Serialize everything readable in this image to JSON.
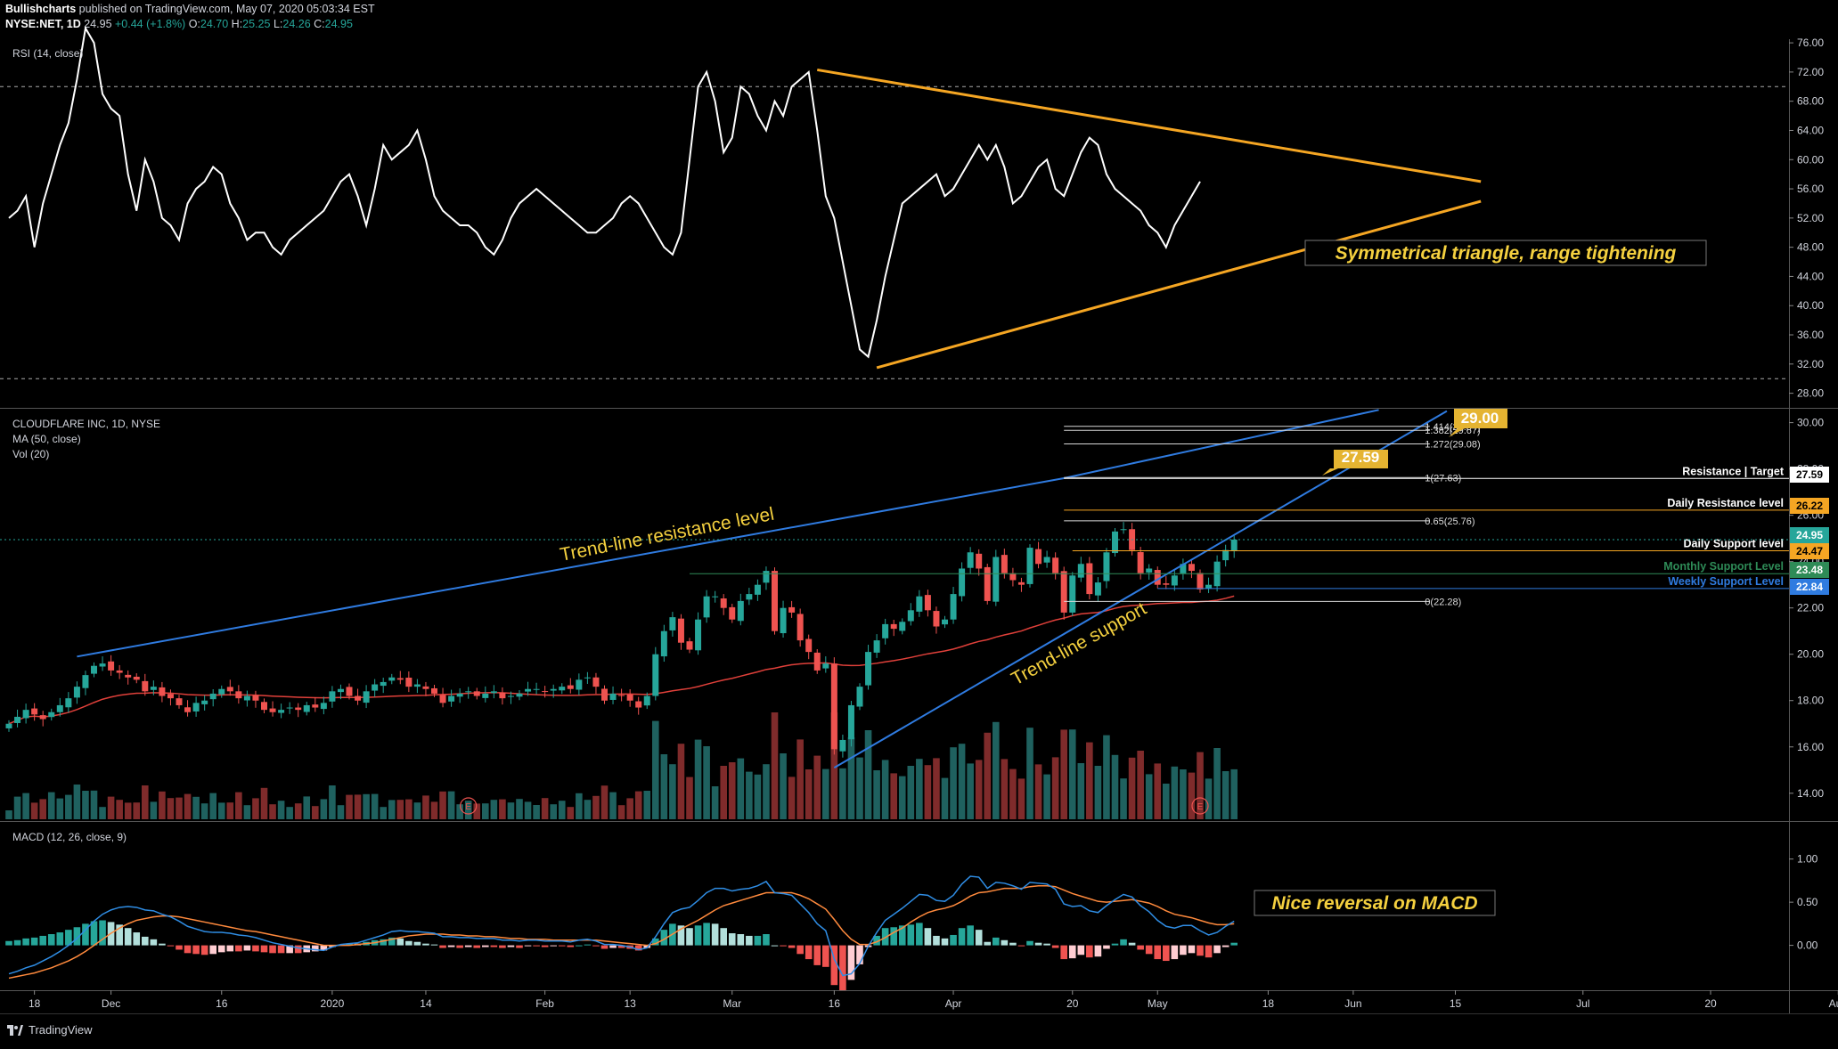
{
  "header": {
    "line1": {
      "author": "Bullishcharts",
      "text": "published on TradingView.com, May 07, 2020 05:03:34 EST"
    },
    "line2": {
      "symbol": "NYSE:NET, 1D",
      "last": "24.95",
      "change": "+0.44 (+1.8%)",
      "o_label": "O:",
      "o": "24.70",
      "h_label": "H:",
      "h": "25.25",
      "l_label": "L:",
      "l": "24.26",
      "c_label": "C:",
      "c": "24.95"
    }
  },
  "footer": {
    "brand": "TradingView",
    "logo_icon": "tradingview-logo-icon"
  },
  "colors": {
    "up": "#26a69a",
    "down": "#ef5350",
    "vol_up": "#1f615f",
    "vol_down": "#7f2b2b",
    "ma": "#e0403a",
    "rsi": "#ffffff",
    "triangle": "#f5a623",
    "trendline": "#2f7be0",
    "annotation": "#f4d03f",
    "macd": "#2f8de4",
    "signal": "#ff8a3d",
    "hist_up_strong": "#26a69a",
    "hist_up_weak": "#b2dfdb",
    "hist_down_strong": "#ef5350",
    "hist_down_weak": "#ffcdd2"
  },
  "chart_data": [
    {
      "type": "line",
      "title": "RSI (14, close)",
      "ylim": [
        26,
        76.5
      ],
      "yticks": [
        "76.00",
        "72.00",
        "68.00",
        "64.00",
        "60.00",
        "56.00",
        "52.00",
        "48.00",
        "44.00",
        "40.00",
        "36.00",
        "32.00",
        "28.00"
      ],
      "levels": [
        70,
        30
      ],
      "series": [
        {
          "name": "RSI",
          "values": [
            52,
            53,
            55,
            48,
            54,
            58,
            62,
            65,
            71,
            78,
            76,
            69,
            67,
            66,
            58,
            53,
            60,
            57,
            52,
            51,
            49,
            54,
            56,
            57,
            59,
            58,
            54,
            52,
            49,
            50,
            50,
            48,
            47,
            49,
            50,
            51,
            52,
            53,
            55,
            57,
            58,
            55,
            51,
            56,
            62,
            60,
            61,
            62,
            64,
            60,
            55,
            53,
            52,
            51,
            51,
            50,
            48,
            47,
            49,
            52,
            54,
            55,
            56,
            55,
            54,
            53,
            52,
            51,
            50,
            50,
            51,
            52,
            54,
            55,
            54,
            52,
            50,
            48,
            47,
            50,
            60,
            70,
            72,
            68,
            61,
            63,
            70,
            69,
            66,
            64,
            68,
            66,
            70,
            71,
            72,
            64,
            55,
            52,
            46,
            40,
            34,
            33,
            38,
            44,
            49,
            54,
            55,
            56,
            57,
            58,
            55,
            56,
            58,
            60,
            62,
            60,
            62,
            59,
            54,
            55,
            57,
            59,
            60,
            56,
            55,
            58,
            61,
            63,
            62,
            58,
            56,
            55,
            54,
            53,
            51,
            50,
            48,
            51,
            53,
            55,
            57
          ]
        }
      ],
      "annotations": {
        "label": "Symmetrical triangle, range tightening",
        "upper_trendline": [
          [
            95,
            72.3
          ],
          [
            173,
            57
          ]
        ],
        "lower_trendline": [
          [
            102,
            31.5
          ],
          [
            173,
            54.3
          ]
        ]
      }
    },
    {
      "type": "candlestick",
      "title": "CLOUDFLARE INC, 1D, NYSE",
      "indicators": [
        "MA (50, close)",
        "Vol (20)"
      ],
      "ylim": [
        12.8,
        30.6
      ],
      "yticks": [
        "30.00",
        "28.00",
        "26.00",
        "24.00",
        "22.00",
        "20.00",
        "18.00",
        "16.00",
        "14.00"
      ],
      "x_ticks": [
        {
          "i": 3,
          "label": "18"
        },
        {
          "i": 12,
          "label": "Dec"
        },
        {
          "i": 25,
          "label": "16"
        },
        {
          "i": 38,
          "label": "2020"
        },
        {
          "i": 49,
          "label": "14"
        },
        {
          "i": 63,
          "label": "Feb"
        },
        {
          "i": 73,
          "label": "13"
        },
        {
          "i": 85,
          "label": "Mar"
        },
        {
          "i": 97,
          "label": "16"
        },
        {
          "i": 111,
          "label": "Apr"
        },
        {
          "i": 125,
          "label": "20"
        },
        {
          "i": 135,
          "label": "May"
        },
        {
          "i": 148,
          "label": "18"
        },
        {
          "i": 158,
          "label": "Jun"
        },
        {
          "i": 170,
          "label": "15"
        },
        {
          "i": 185,
          "label": "Jul"
        },
        {
          "i": 200,
          "label": "20"
        },
        {
          "i": 215,
          "label": "Aug"
        }
      ],
      "close": [
        17.0,
        17.3,
        17.6,
        17.4,
        17.2,
        17.5,
        17.8,
        18.1,
        18.6,
        19.1,
        19.5,
        19.6,
        19.3,
        19.2,
        19.0,
        18.9,
        18.4,
        18.6,
        18.2,
        18.1,
        17.8,
        17.5,
        17.9,
        18.0,
        18.3,
        18.5,
        18.4,
        18.1,
        18.2,
        18.0,
        17.6,
        17.5,
        17.6,
        17.7,
        17.6,
        17.8,
        17.7,
        17.9,
        18.4,
        18.5,
        18.2,
        18.0,
        18.4,
        18.7,
        18.8,
        19.0,
        18.9,
        18.6,
        18.7,
        18.5,
        18.3,
        17.9,
        18.2,
        18.3,
        18.4,
        18.2,
        18.3,
        18.4,
        18.1,
        18.2,
        18.3,
        18.5,
        18.5,
        18.4,
        18.5,
        18.6,
        18.5,
        18.9,
        19.0,
        18.6,
        18.0,
        18.3,
        18.2,
        18.0,
        17.7,
        18.2,
        20.0,
        21.0,
        21.6,
        20.5,
        20.2,
        21.5,
        22.5,
        22.5,
        22.0,
        21.5,
        22.3,
        22.6,
        23.0,
        23.6,
        21.0,
        22.0,
        21.8,
        20.6,
        20.1,
        19.3,
        19.6,
        15.9,
        16.3,
        17.8,
        18.6,
        20.1,
        20.6,
        21.3,
        21.1,
        21.4,
        21.9,
        22.5,
        21.9,
        21.2,
        21.5,
        22.6,
        23.7,
        24.4,
        23.7,
        22.3,
        24.2,
        23.5,
        23.2,
        23.0,
        24.6,
        23.9,
        24.2,
        23.5,
        21.8,
        23.4,
        23.9,
        22.6,
        23.1,
        24.4,
        25.3,
        25.4,
        24.5,
        23.5,
        23.7,
        23.0,
        23.0,
        23.4,
        23.9,
        23.6,
        22.8,
        23.0,
        24.0,
        24.5,
        24.95
      ],
      "ma_note": "MA (50, close)",
      "volume_note": "Vol (20)",
      "earnings_markers": [
        "E",
        "E"
      ],
      "price_markers": [
        {
          "label": "27.59",
          "value": 27.59,
          "color": "#ffffff",
          "text_color": "#000000"
        },
        {
          "label": "26.22",
          "value": 26.22,
          "color": "#f5a623",
          "text_color": "#000000"
        },
        {
          "label": "24.95",
          "value": 24.95,
          "color": "#26a69a",
          "text_color": "#ffffff"
        },
        {
          "label": "24.47",
          "value": 24.47,
          "color": "#f5a623",
          "text_color": "#000000"
        },
        {
          "label": "23.48",
          "value": 23.48,
          "color": "#2e8b57",
          "text_color": "#ffffff"
        },
        {
          "label": "22.84",
          "value": 22.84,
          "color": "#2f7be0",
          "text_color": "#ffffff"
        }
      ],
      "levels": [
        {
          "label": "Resistance | Target",
          "value": 27.59,
          "color": "#ffffff"
        },
        {
          "label": "Daily Resistance level",
          "value": 26.22,
          "color": "#f5a623"
        },
        {
          "label": "Daily Support level",
          "value": 24.47,
          "color": "#f5a623"
        },
        {
          "label": "Monthly Support Level",
          "value": 23.48,
          "color": "#2e8b57"
        },
        {
          "label": "Weekly Support Level",
          "value": 22.84,
          "color": "#2f7be0"
        }
      ],
      "fib_levels": [
        {
          "label": "1.414(29.84)",
          "value": 29.84
        },
        {
          "label": "1.382(29.67)",
          "value": 29.67
        },
        {
          "label": "1.272(29.08)",
          "value": 29.08
        },
        {
          "label": "1(27.63)",
          "value": 27.63
        },
        {
          "label": "0.65(25.76)",
          "value": 25.76
        },
        {
          "label": "0(22.28)",
          "value": 22.28
        }
      ],
      "callouts": [
        {
          "label": "27.59",
          "value": 27.59
        },
        {
          "label": "29.00",
          "value": 29.0
        }
      ],
      "annotations": {
        "resistance": "Trend-line resistance level",
        "support": "Trend-line support"
      }
    },
    {
      "type": "line",
      "title": "MACD (12, 26, close, 9)",
      "ylim": [
        -0.52,
        1.43
      ],
      "yticks": [
        "1.00",
        "0.50",
        "0.00"
      ],
      "series": [
        {
          "name": "MACD",
          "values": [
            -0.33,
            -0.3,
            -0.26,
            -0.23,
            -0.18,
            -0.13,
            -0.07,
            0.0,
            0.08,
            0.18,
            0.28,
            0.36,
            0.41,
            0.44,
            0.45,
            0.44,
            0.41,
            0.4,
            0.36,
            0.33,
            0.28,
            0.22,
            0.19,
            0.16,
            0.15,
            0.15,
            0.14,
            0.12,
            0.11,
            0.09,
            0.06,
            0.03,
            0.01,
            -0.01,
            -0.03,
            -0.04,
            -0.05,
            -0.06,
            -0.02,
            0.01,
            0.02,
            0.03,
            0.06,
            0.09,
            0.12,
            0.16,
            0.17,
            0.16,
            0.16,
            0.15,
            0.14,
            0.1,
            0.1,
            0.09,
            0.09,
            0.08,
            0.08,
            0.08,
            0.06,
            0.06,
            0.05,
            0.06,
            0.06,
            0.05,
            0.05,
            0.05,
            0.04,
            0.06,
            0.07,
            0.05,
            0.01,
            0.01,
            0.0,
            -0.02,
            -0.05,
            -0.03,
            0.1,
            0.25,
            0.38,
            0.42,
            0.44,
            0.52,
            0.61,
            0.66,
            0.66,
            0.63,
            0.65,
            0.66,
            0.69,
            0.74,
            0.61,
            0.6,
            0.58,
            0.48,
            0.38,
            0.25,
            0.17,
            -0.16,
            -0.35,
            -0.33,
            -0.21,
            -0.01,
            0.15,
            0.29,
            0.36,
            0.43,
            0.51,
            0.59,
            0.58,
            0.52,
            0.51,
            0.58,
            0.71,
            0.8,
            0.79,
            0.66,
            0.73,
            0.72,
            0.69,
            0.65,
            0.73,
            0.72,
            0.71,
            0.65,
            0.48,
            0.45,
            0.46,
            0.4,
            0.38,
            0.46,
            0.53,
            0.59,
            0.56,
            0.46,
            0.39,
            0.29,
            0.22,
            0.2,
            0.23,
            0.23,
            0.17,
            0.12,
            0.15,
            0.22,
            0.28
          ]
        },
        {
          "name": "Signal",
          "values": [
            -0.38,
            -0.36,
            -0.34,
            -0.32,
            -0.29,
            -0.26,
            -0.22,
            -0.18,
            -0.13,
            -0.07,
            0.0,
            0.07,
            0.14,
            0.2,
            0.25,
            0.29,
            0.31,
            0.33,
            0.34,
            0.34,
            0.33,
            0.31,
            0.29,
            0.27,
            0.25,
            0.23,
            0.21,
            0.19,
            0.17,
            0.16,
            0.14,
            0.12,
            0.1,
            0.08,
            0.06,
            0.04,
            0.02,
            0.0,
            0.0,
            0.0,
            0.0,
            0.01,
            0.02,
            0.03,
            0.05,
            0.07,
            0.09,
            0.11,
            0.12,
            0.13,
            0.13,
            0.13,
            0.12,
            0.12,
            0.11,
            0.11,
            0.1,
            0.1,
            0.09,
            0.08,
            0.08,
            0.07,
            0.07,
            0.07,
            0.06,
            0.06,
            0.06,
            0.06,
            0.06,
            0.06,
            0.05,
            0.04,
            0.03,
            0.02,
            0.01,
            0.0,
            0.02,
            0.07,
            0.13,
            0.19,
            0.24,
            0.29,
            0.35,
            0.41,
            0.46,
            0.49,
            0.52,
            0.55,
            0.58,
            0.61,
            0.61,
            0.61,
            0.61,
            0.58,
            0.54,
            0.48,
            0.42,
            0.3,
            0.17,
            0.07,
            0.01,
            0.01,
            0.04,
            0.09,
            0.15,
            0.2,
            0.27,
            0.33,
            0.38,
            0.41,
            0.43,
            0.46,
            0.51,
            0.57,
            0.61,
            0.62,
            0.64,
            0.66,
            0.66,
            0.66,
            0.68,
            0.69,
            0.69,
            0.68,
            0.64,
            0.6,
            0.57,
            0.54,
            0.51,
            0.5,
            0.51,
            0.52,
            0.53,
            0.51,
            0.49,
            0.45,
            0.4,
            0.36,
            0.34,
            0.32,
            0.29,
            0.26,
            0.24,
            0.24,
            0.25
          ]
        }
      ],
      "histogram_source": "MACD minus Signal",
      "annotations": {
        "label": "Nice reversal on MACD"
      }
    }
  ]
}
